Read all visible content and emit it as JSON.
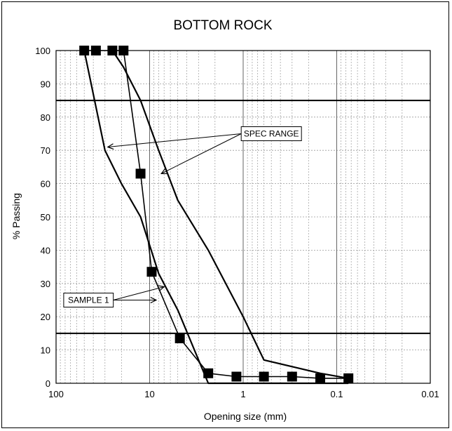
{
  "chart_data": {
    "type": "line",
    "title": "BOTTOM ROCK",
    "xlabel": "Opening size (mm)",
    "ylabel": "% Passing",
    "x_scale": "log",
    "x_reversed": true,
    "xlim": [
      100,
      0.01
    ],
    "ylim": [
      0,
      100
    ],
    "x_ticks": [
      100,
      10,
      1,
      0.1,
      0.01
    ],
    "x_tick_labels": [
      "100",
      "10",
      "1",
      "0.1",
      "0.01"
    ],
    "y_ticks": [
      0,
      10,
      20,
      30,
      40,
      50,
      60,
      70,
      80,
      90,
      100
    ],
    "grid": true,
    "horizontal_limits": [
      85,
      15
    ],
    "series": [
      {
        "name": "SAMPLE 1",
        "marker": "square",
        "x": [
          50,
          37.5,
          25,
          19,
          12.5,
          9.5,
          4.75,
          2.36,
          1.18,
          0.6,
          0.3,
          0.15,
          0.075
        ],
        "y": [
          100,
          100,
          100,
          100,
          63,
          33.5,
          13.5,
          3,
          2,
          2,
          2,
          1.5,
          1.5
        ]
      },
      {
        "name": "SPEC RANGE",
        "x": [
          50,
          30,
          20,
          12.5,
          8,
          5,
          2.36,
          1.0,
          0.6,
          0.3,
          0.15,
          0.075
        ],
        "y": [
          100,
          70,
          60,
          50,
          33,
          22,
          0,
          0,
          0,
          0,
          0,
          0
        ]
      },
      {
        "name": "SPEC RANGE",
        "x": [
          25,
          19,
          12.5,
          8,
          5,
          2.36,
          1.0,
          0.6,
          0.3,
          0.15,
          0.075
        ],
        "y": [
          100,
          95,
          85,
          70,
          55,
          40,
          20,
          7,
          5,
          3,
          1.5
        ]
      }
    ],
    "annotations": [
      {
        "text": "SPEC RANGE",
        "box_x": 0.5,
        "box_y": 75,
        "arrows_to": [
          [
            28,
            71
          ],
          [
            7.5,
            63
          ]
        ]
      },
      {
        "text": "SAMPLE 1",
        "box_x": 45,
        "box_y": 25,
        "arrows_to": [
          [
            8.5,
            25
          ],
          [
            7,
            29
          ]
        ]
      }
    ]
  }
}
